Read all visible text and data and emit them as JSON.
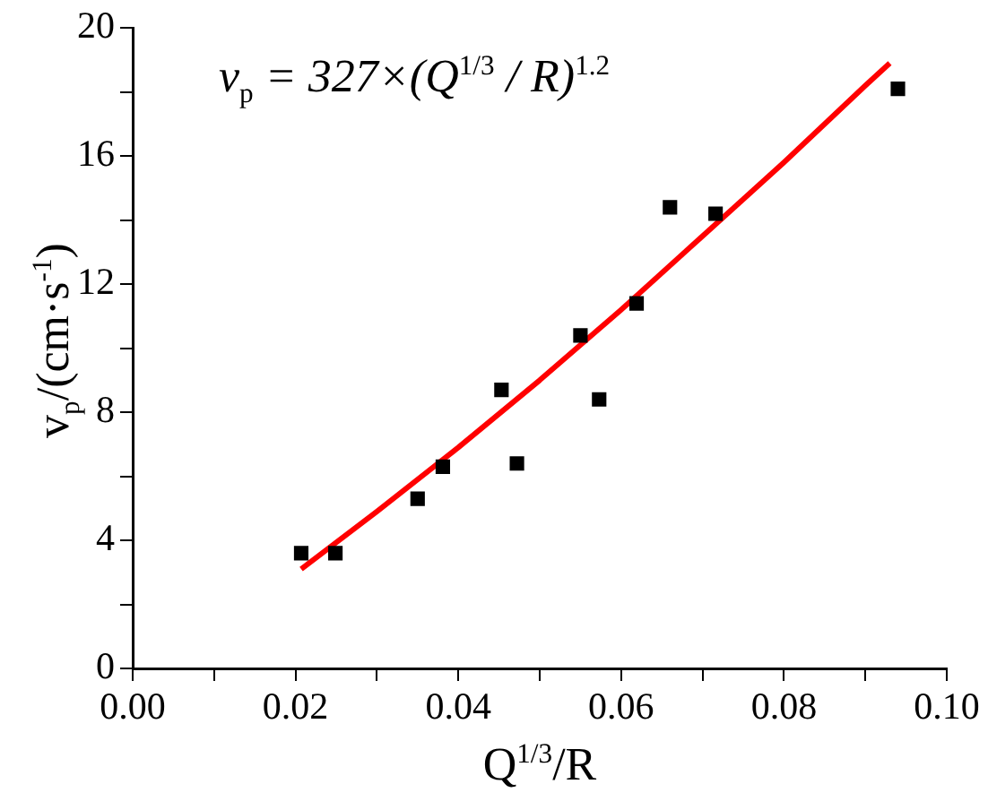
{
  "chart_data": {
    "type": "scatter",
    "xlabel": "Q$^{1/3}$/R",
    "ylabel": "v$_{p}$/(cm·s$^{-1}$)",
    "annotations": [
      "v$_{p}$ = 327×(Q$^{1/3}$ / R)$^{1.2}$"
    ],
    "xlim": [
      0,
      0.1
    ],
    "xticks": [
      {
        "value": 0,
        "label": "0.00"
      },
      {
        "value": 0.01,
        "label": null
      },
      {
        "value": 0.02,
        "label": "0.02"
      },
      {
        "value": 0.03,
        "label": null
      },
      {
        "value": 0.04,
        "label": "0.04"
      },
      {
        "value": 0.05,
        "label": null
      },
      {
        "value": 0.06,
        "label": "0.06"
      },
      {
        "value": 0.07,
        "label": null
      },
      {
        "value": 0.08,
        "label": "0.08"
      },
      {
        "value": 0.09,
        "label": null
      },
      {
        "value": 0.1,
        "label": "0.10"
      }
    ],
    "ylim": [
      0,
      20
    ],
    "yticks": [
      0,
      {
        "value": 2,
        "label": null
      },
      4,
      {
        "value": 6,
        "label": null
      },
      8,
      {
        "value": 10,
        "label": null
      },
      12,
      {
        "value": 14,
        "label": null
      },
      16,
      {
        "value": 18,
        "label": null
      },
      20
    ],
    "grid": false,
    "legend": false,
    "series": [
      {
        "type": "scatter",
        "color": "#000000",
        "marker": "square",
        "x": [
          0.0207,
          0.0249,
          0.035,
          0.0381,
          0.0453,
          0.0472,
          0.055,
          0.0573,
          0.0619,
          0.066,
          0.0716,
          0.094
        ],
        "values": [
          3.6,
          3.6,
          5.3,
          6.3,
          8.7,
          6.4,
          10.4,
          8.4,
          11.4,
          14.4,
          14.2,
          18.1
        ]
      },
      {
        "type": "line",
        "color": "#ff0000",
        "marker": "none",
        "x": [
          0.0207,
          0.03,
          0.04,
          0.05,
          0.06,
          0.07,
          0.08,
          0.09,
          0.093
        ],
        "values": [
          3.1,
          4.9,
          6.9,
          9.0,
          11.2,
          13.5,
          15.8,
          18.2,
          18.9
        ]
      }
    ]
  }
}
